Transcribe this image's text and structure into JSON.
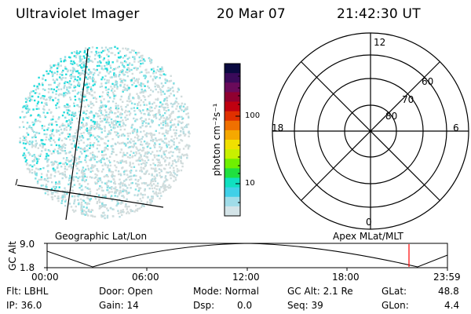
{
  "header": {
    "title": "Ultraviolet Imager",
    "date": "20 Mar 07",
    "time": "21:42:30 UT"
  },
  "colorbar": {
    "unit_label": "photon cm⁻²s⁻¹",
    "ticks": [
      "100",
      "10"
    ],
    "colors": [
      "#0a0a40",
      "#3a0a5a",
      "#6a0a5a",
      "#900030",
      "#c00010",
      "#e03000",
      "#f07000",
      "#f5a800",
      "#f0e000",
      "#c8f000",
      "#70f000",
      "#20e040",
      "#10e0c0",
      "#40d0e8",
      "#a0dce8",
      "#d4e4e8"
    ]
  },
  "image_panel": {
    "geo_label": "Geographic Lat/Lon",
    "dot_colors": [
      "#22dcdc",
      "#80e0e4",
      "#b8dce0",
      "#d2dcdc"
    ]
  },
  "polar_panel": {
    "apex_label": "Apex MLat/MLT",
    "mlt_labels": {
      "top": "12",
      "left": "18",
      "right": "6",
      "bottom": "0"
    },
    "mlat_labels": [
      "60",
      "70",
      "80"
    ]
  },
  "altitude_plot": {
    "ylabel": "GC Alt",
    "yticks": [
      "9.0",
      "1.8"
    ],
    "xticks": [
      "00:00",
      "06:00",
      "12:00",
      "18:00",
      "23:59"
    ],
    "marker_color": "#ff0000"
  },
  "footer": {
    "row1": {
      "flt": "Flt: LBHL",
      "door": "Door: Open",
      "mode": "Mode: Normal",
      "gcalt": "GC Alt: 2.1 Re",
      "glat_label": "GLat:",
      "glat_value": "48.8"
    },
    "row2": {
      "ip": "IP: 36.0",
      "gain": "Gain: 14",
      "dsp_label": "Dsp:",
      "dsp_value": "0.0",
      "seq": "Seq: 39",
      "glon_label": "GLon:",
      "glon_value": "4.4"
    }
  }
}
